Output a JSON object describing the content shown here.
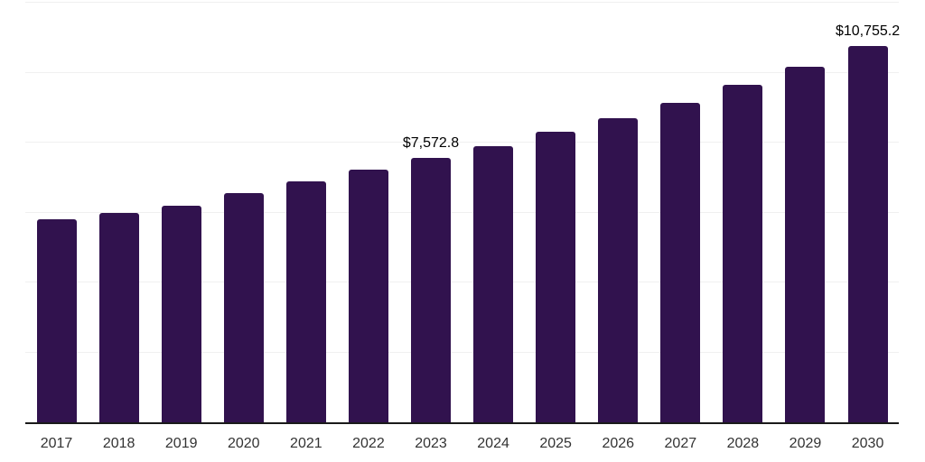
{
  "chart_data": {
    "type": "bar",
    "title": "",
    "xlabel": "",
    "ylabel": "",
    "categories": [
      "2017",
      "2018",
      "2019",
      "2020",
      "2021",
      "2022",
      "2023",
      "2024",
      "2025",
      "2026",
      "2027",
      "2028",
      "2029",
      "2030"
    ],
    "values": [
      5805,
      5990,
      6190,
      6565,
      6895,
      7220,
      7572.8,
      7900,
      8310,
      8695,
      9135,
      9645,
      10165,
      10755.2
    ],
    "data_labels": [
      {
        "category": "2023",
        "text": "$7,572.8"
      },
      {
        "category": "2030",
        "text": "$10,755.2"
      }
    ],
    "ylim": [
      0,
      12000
    ],
    "gridline_interval": 2000,
    "grid": true,
    "y_tick_labels_shown": false,
    "legend_position": "none",
    "colors": {
      "bar": "#31124e",
      "axis_line": "#1a1a1a",
      "gridline": "#f0f0f0",
      "tick_label": "#333333",
      "data_label": "#000000",
      "background": "#ffffff"
    }
  }
}
